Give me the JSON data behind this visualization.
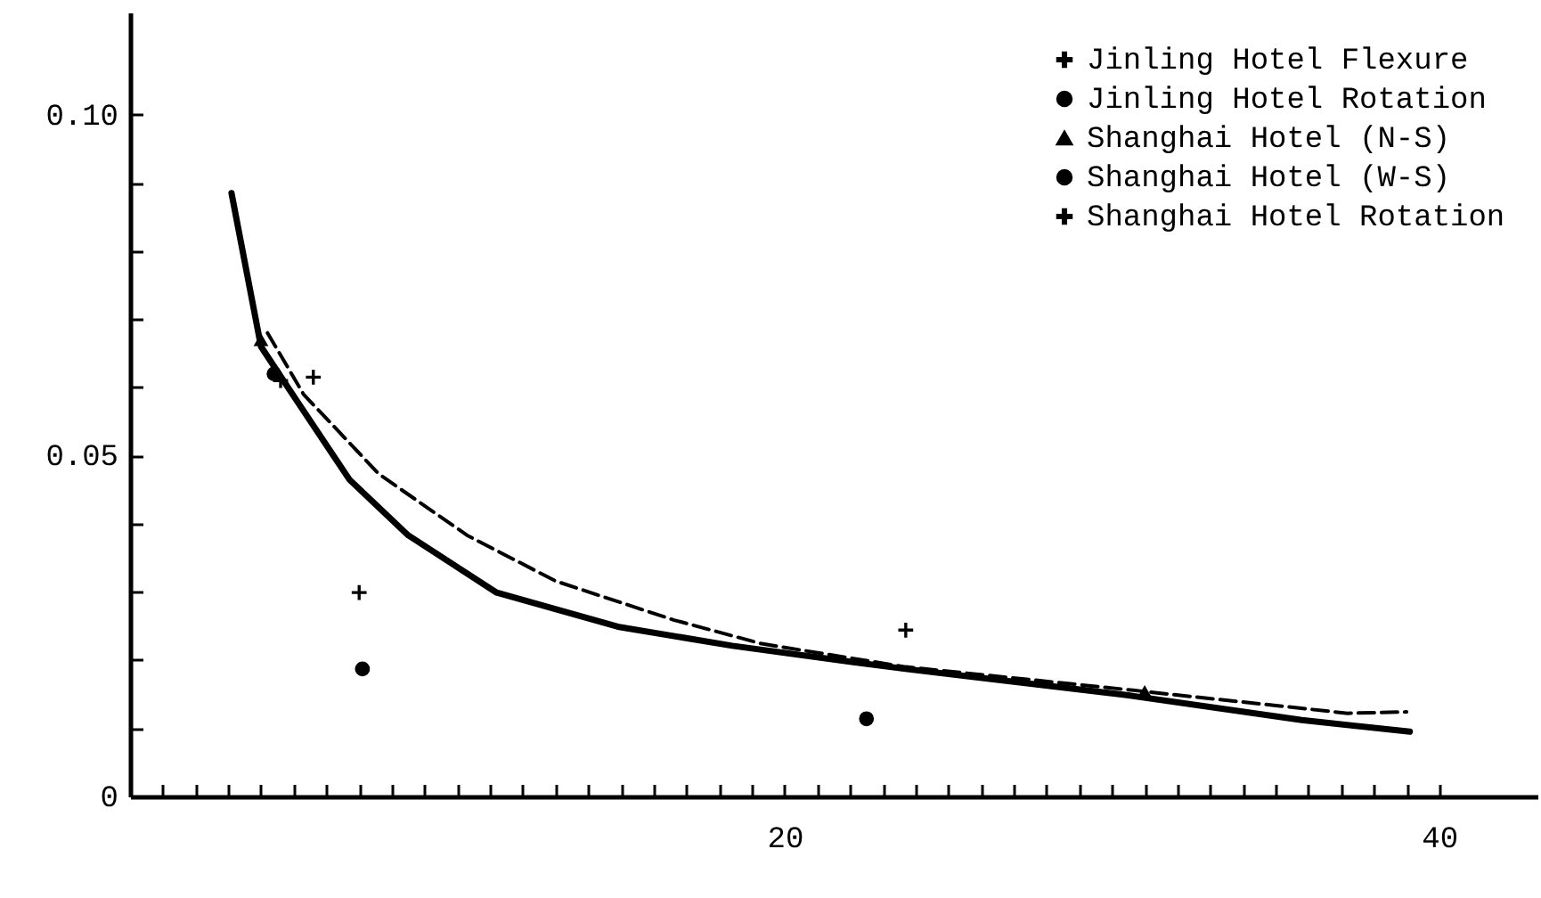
{
  "chart_data": {
    "type": "scatter",
    "xlim": [
      0,
      43
    ],
    "ylim": [
      0,
      0.115
    ],
    "xticks": [
      {
        "value": 1,
        "label": null
      },
      {
        "value": 2,
        "label": null
      },
      {
        "value": 3,
        "label": null
      },
      {
        "value": 4,
        "label": null
      },
      {
        "value": 5,
        "label": null
      },
      {
        "value": 6,
        "label": null
      },
      {
        "value": 7,
        "label": null
      },
      {
        "value": 8,
        "label": null
      },
      {
        "value": 9,
        "label": null
      },
      {
        "value": 10,
        "label": null
      },
      {
        "value": 11,
        "label": null
      },
      {
        "value": 12,
        "label": null
      },
      {
        "value": 13,
        "label": null
      },
      {
        "value": 14,
        "label": null
      },
      {
        "value": 15,
        "label": null
      },
      {
        "value": 16,
        "label": null
      },
      {
        "value": 17,
        "label": null
      },
      {
        "value": 18,
        "label": null
      },
      {
        "value": 19,
        "label": null
      },
      20,
      {
        "value": 21,
        "label": null
      },
      {
        "value": 22,
        "label": null
      },
      {
        "value": 23,
        "label": null
      },
      {
        "value": 24,
        "label": null
      },
      {
        "value": 25,
        "label": null
      },
      {
        "value": 26,
        "label": null
      },
      {
        "value": 27,
        "label": null
      },
      {
        "value": 28,
        "label": null
      },
      {
        "value": 29,
        "label": null
      },
      {
        "value": 30,
        "label": null
      },
      {
        "value": 31,
        "label": null
      },
      {
        "value": 32,
        "label": null
      },
      {
        "value": 33,
        "label": null
      },
      {
        "value": 34,
        "label": null
      },
      {
        "value": 35,
        "label": null
      },
      {
        "value": 36,
        "label": null
      },
      {
        "value": 37,
        "label": null
      },
      {
        "value": 38,
        "label": null
      },
      {
        "value": 39,
        "label": null
      },
      40
    ],
    "yticks": [
      {
        "value": 0,
        "label": "0"
      },
      {
        "value": 0.01,
        "label": null
      },
      {
        "value": 0.02,
        "label": null
      },
      {
        "value": 0.03,
        "label": null
      },
      {
        "value": 0.04,
        "label": null
      },
      {
        "value": 0.05,
        "label": "0.05"
      },
      {
        "value": 0.06,
        "label": null
      },
      {
        "value": 0.07,
        "label": null
      },
      {
        "value": 0.08,
        "label": null
      },
      {
        "value": 0.09,
        "label": null
      },
      {
        "value": 0.1,
        "label": "0.10"
      }
    ],
    "grid": false,
    "legend": "top right",
    "series": [
      {
        "name": "Jinling Hotel Flexure",
        "marker": "cross",
        "color": "#000000",
        "x": [
          5.6,
          23.7
        ],
        "values": [
          0.0615,
          0.0244
        ]
      },
      {
        "name": "Jinling Hotel Rotation",
        "marker": "circle",
        "color": "#000000",
        "x": [
          7.1,
          22.5
        ],
        "values": [
          0.0187,
          0.0114
        ]
      },
      {
        "name": "Shanghai Hotel (N-S)",
        "marker": "triangle",
        "color": "#000000",
        "x": [
          4.0,
          31.0
        ],
        "values": [
          0.067,
          0.0154
        ]
      },
      {
        "name": "Shanghai Hotel (W-S)",
        "marker": "circle",
        "color": "#000000",
        "x": [
          4.4
        ],
        "values": [
          0.062
        ]
      },
      {
        "name": "Shanghai Hotel Rotation",
        "marker": "cross",
        "color": "#000000",
        "x": [
          4.6,
          7.0
        ],
        "values": [
          0.061,
          0.0299
        ]
      },
      {
        "type": "line",
        "line_style": "solid",
        "marker": "none",
        "color": "#000000",
        "x": [
          3.1,
          4.0,
          5.1,
          6.7,
          8.5,
          11.2,
          14.9,
          18.4,
          22.1,
          23.7,
          30.4,
          35.8,
          39.1
        ],
        "values": [
          0.0885,
          0.066,
          0.058,
          0.0465,
          0.0383,
          0.0299,
          0.0249,
          0.0221,
          0.0197,
          0.0187,
          0.0149,
          0.0112,
          0.0095
        ]
      },
      {
        "type": "line",
        "line_style": "dashed",
        "marker": "none",
        "color": "#000000",
        "x": [
          4.2,
          5.3,
          7.6,
          10.3,
          13.0,
          16.6,
          19.3,
          23.7,
          30.4,
          37.2,
          39.0
        ],
        "values": [
          0.068,
          0.059,
          0.0473,
          0.0383,
          0.0316,
          0.0259,
          0.0224,
          0.019,
          0.0157,
          0.0122,
          0.0124
        ]
      }
    ]
  }
}
